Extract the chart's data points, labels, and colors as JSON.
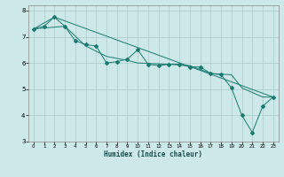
{
  "xlabel": "Humidex (Indice chaleur)",
  "bg_color": "#cce8e8",
  "grid_color": "#aacccc",
  "line_color": "#1a7a6e",
  "xlim": [
    -0.5,
    23.5
  ],
  "ylim": [
    3,
    8.2
  ],
  "xticks": [
    0,
    1,
    2,
    3,
    4,
    5,
    6,
    7,
    8,
    9,
    10,
    11,
    12,
    13,
    14,
    15,
    16,
    17,
    18,
    19,
    20,
    21,
    22,
    23
  ],
  "yticks": [
    3,
    4,
    5,
    6,
    7,
    8
  ],
  "series1": [
    [
      0,
      7.3
    ],
    [
      1,
      7.4
    ],
    [
      2,
      7.75
    ],
    [
      3,
      7.4
    ],
    [
      4,
      6.85
    ],
    [
      5,
      6.7
    ],
    [
      6,
      6.65
    ],
    [
      7,
      6.0
    ],
    [
      8,
      6.05
    ],
    [
      9,
      6.15
    ],
    [
      10,
      6.5
    ],
    [
      11,
      5.95
    ],
    [
      12,
      5.9
    ],
    [
      13,
      5.95
    ],
    [
      14,
      5.95
    ],
    [
      15,
      5.85
    ],
    [
      16,
      5.85
    ],
    [
      17,
      5.6
    ],
    [
      18,
      5.55
    ],
    [
      19,
      5.05
    ],
    [
      20,
      4.0
    ],
    [
      21,
      3.35
    ],
    [
      22,
      4.35
    ],
    [
      23,
      4.7
    ]
  ],
  "series2": [
    [
      0,
      7.3
    ],
    [
      3,
      7.4
    ],
    [
      5,
      6.65
    ],
    [
      7,
      6.25
    ],
    [
      9,
      6.1
    ],
    [
      10,
      6.0
    ],
    [
      13,
      5.95
    ],
    [
      15,
      5.9
    ],
    [
      17,
      5.6
    ],
    [
      19,
      5.55
    ],
    [
      20,
      5.05
    ],
    [
      22,
      4.7
    ],
    [
      23,
      4.7
    ]
  ],
  "series3": [
    [
      0,
      7.3
    ],
    [
      2,
      7.75
    ],
    [
      23,
      4.7
    ]
  ]
}
